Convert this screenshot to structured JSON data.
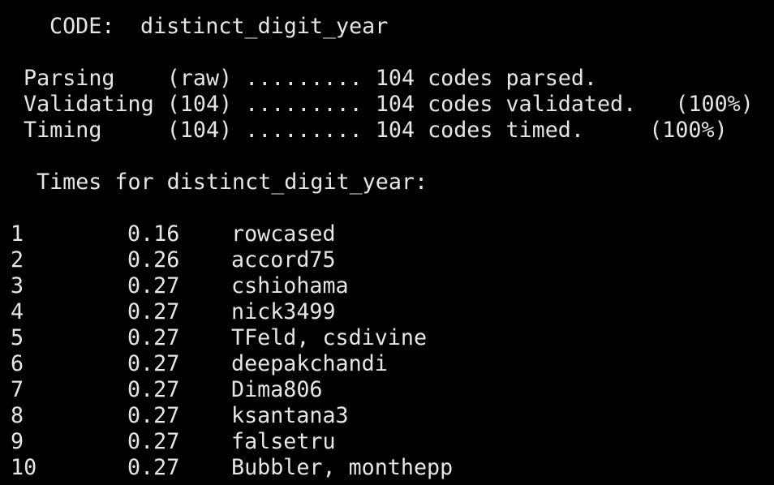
{
  "header": {
    "label": "CODE:",
    "title": "distinct_digit_year"
  },
  "status": {
    "lines": [
      "Parsing    (raw) ......... 104 codes parsed.",
      "Validating (104) ......... 104 codes validated.   (100%)",
      "Timing     (104) ......... 104 codes timed.     (100%)"
    ]
  },
  "table": {
    "heading": "Times for distinct_digit_year:",
    "rows": [
      [
        1,
        "0.16",
        "rowcased"
      ],
      [
        2,
        "0.26",
        "accord75"
      ],
      [
        3,
        "0.27",
        "cshiohama"
      ],
      [
        4,
        "0.27",
        "nick3499"
      ],
      [
        5,
        "0.27",
        "TFeld, csdivine"
      ],
      [
        6,
        "0.27",
        "deepakchandi"
      ],
      [
        7,
        "0.27",
        "Dima806"
      ],
      [
        8,
        "0.27",
        "ksantana3"
      ],
      [
        9,
        "0.27",
        "falsetru"
      ],
      [
        10,
        "0.27",
        "Bubbler, monthepp"
      ]
    ]
  }
}
